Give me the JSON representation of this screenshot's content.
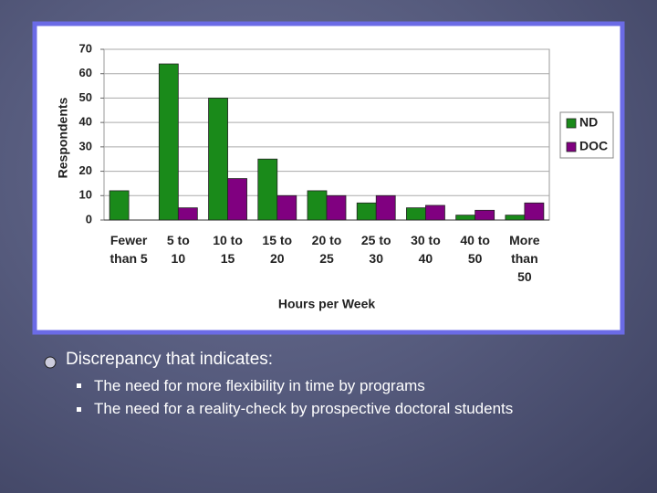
{
  "chart_data": {
    "type": "bar",
    "ylabel": "Respondents",
    "xlabel": "Hours per Week",
    "categories": [
      "Fewer than 5",
      "5 to 10",
      "10 to 15",
      "15 to 20",
      "20 to 25",
      "25 to 30",
      "30 to 40",
      "40 to 50",
      "More than 50"
    ],
    "series": [
      {
        "name": "ND",
        "color": "#1a8a1a",
        "values": [
          12,
          64,
          50,
          25,
          12,
          7,
          5,
          2,
          2
        ]
      },
      {
        "name": "DOC",
        "color": "#800080",
        "values": [
          0,
          5,
          17,
          10,
          10,
          10,
          6,
          4,
          7
        ]
      }
    ],
    "ylim": [
      0,
      70
    ],
    "yticks": [
      0,
      10,
      20,
      30,
      40,
      50,
      60,
      70
    ],
    "grid": true,
    "legend": "right"
  },
  "bullets": {
    "title": "Discrepancy that indicates:",
    "items": [
      "The need for more flexibility in time by programs",
      "The need for a reality-check by prospective doctoral students"
    ]
  }
}
